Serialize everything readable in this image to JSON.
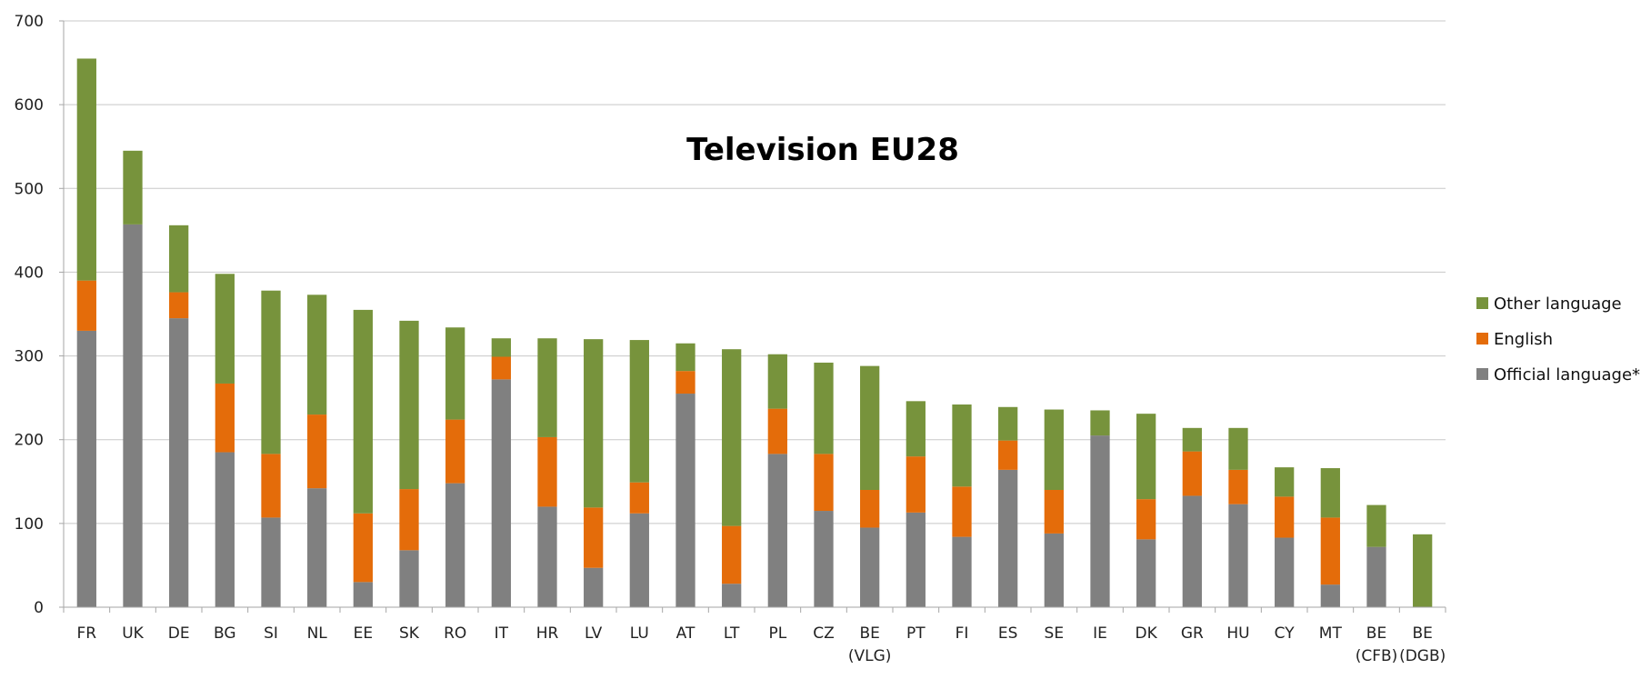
{
  "chart_data": {
    "type": "bar",
    "stacked": true,
    "title": "Television EU28",
    "xlabel": "",
    "ylabel": "",
    "ylim": [
      0,
      700
    ],
    "yticks": [
      0,
      100,
      200,
      300,
      400,
      500,
      600,
      700
    ],
    "grid": true,
    "legend_position": "right",
    "categories": [
      [
        "FR"
      ],
      [
        "UK"
      ],
      [
        "DE"
      ],
      [
        "BG"
      ],
      [
        "SI"
      ],
      [
        "NL"
      ],
      [
        "EE"
      ],
      [
        "SK"
      ],
      [
        "RO"
      ],
      [
        "IT"
      ],
      [
        "HR"
      ],
      [
        "LV"
      ],
      [
        "LU"
      ],
      [
        "AT"
      ],
      [
        "LT"
      ],
      [
        "PL"
      ],
      [
        "CZ"
      ],
      [
        "BE",
        "(VLG)"
      ],
      [
        "PT"
      ],
      [
        "FI"
      ],
      [
        "ES"
      ],
      [
        "SE"
      ],
      [
        "IE"
      ],
      [
        "DK"
      ],
      [
        "GR"
      ],
      [
        "HU"
      ],
      [
        "CY"
      ],
      [
        "MT"
      ],
      [
        "BE",
        "(CFB)"
      ],
      [
        "BE",
        "(DGB)"
      ]
    ],
    "series": [
      {
        "name": "Official language*",
        "color": "#808080",
        "values": [
          330,
          457,
          345,
          185,
          107,
          142,
          30,
          68,
          148,
          272,
          120,
          47,
          112,
          255,
          28,
          183,
          115,
          95,
          113,
          84,
          164,
          88,
          205,
          81,
          133,
          123,
          83,
          27,
          72,
          0
        ]
      },
      {
        "name": "English",
        "color": "#E46C0A",
        "values": [
          60,
          0,
          31,
          82,
          76,
          88,
          82,
          73,
          76,
          27,
          83,
          72,
          37,
          27,
          69,
          54,
          68,
          45,
          67,
          60,
          35,
          52,
          0,
          48,
          53,
          41,
          49,
          80,
          0,
          0
        ]
      },
      {
        "name": "Other language",
        "color": "#77933C",
        "values": [
          265,
          88,
          80,
          131,
          195,
          143,
          243,
          201,
          110,
          22,
          118,
          201,
          170,
          33,
          211,
          65,
          109,
          148,
          66,
          98,
          40,
          96,
          30,
          102,
          28,
          50,
          35,
          59,
          50,
          87
        ]
      }
    ]
  },
  "legend": {
    "items": [
      {
        "label": "Other language",
        "series_index": 2
      },
      {
        "label": "English",
        "series_index": 1
      },
      {
        "label": "Official language*",
        "series_index": 0
      }
    ]
  }
}
